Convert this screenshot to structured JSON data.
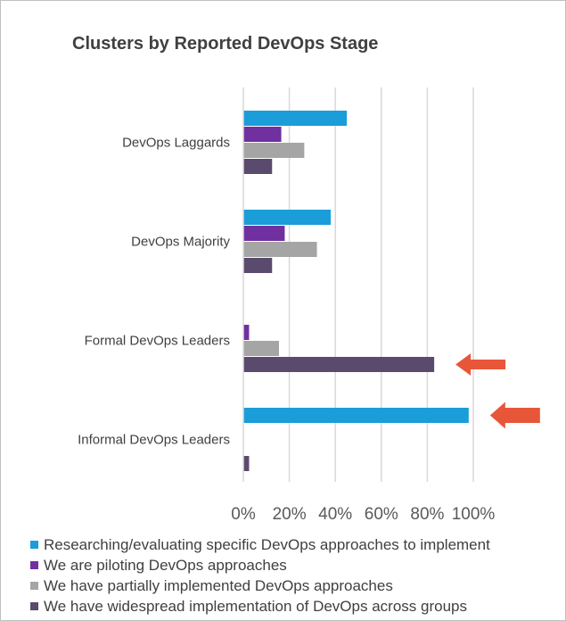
{
  "chart_data": {
    "type": "bar",
    "orientation": "horizontal",
    "title": "Clusters by Reported DevOps Stage",
    "categories": [
      "DevOps Laggards",
      "DevOps Majority",
      "Formal DevOps Leaders",
      "Informal DevOps Leaders"
    ],
    "series": [
      {
        "name": "Researching/evaluating specific DevOps approaches to implement",
        "color": "#1a9dd8",
        "values": [
          45,
          38,
          0,
          98
        ]
      },
      {
        "name": "We are piloting DevOps approaches",
        "color": "#7030a0",
        "values": [
          16.5,
          18,
          2.5,
          0
        ]
      },
      {
        "name": "We have partially implemented DevOps approaches",
        "color": "#a5a5a5",
        "values": [
          26.5,
          32,
          15.5,
          0
        ]
      },
      {
        "name": "We have widespread implementation of DevOps across groups",
        "color": "#5a4a6e",
        "values": [
          12.5,
          12.5,
          83,
          2.5
        ]
      }
    ],
    "xlim": [
      0,
      100
    ],
    "xticks": [
      0,
      20,
      40,
      60,
      80,
      100
    ],
    "xtick_labels": [
      "0%",
      "20%",
      "40%",
      "60%",
      "80%",
      "100%"
    ],
    "grid": true,
    "legend_position": "bottom",
    "annotations": [
      {
        "type": "arrow",
        "color": "#e8563a",
        "target": "Formal DevOps Leaders / We have widespread implementation of DevOps across groups"
      },
      {
        "type": "arrow",
        "color": "#e8563a",
        "target": "Informal DevOps Leaders / Researching/evaluating specific DevOps approaches to implement"
      }
    ]
  }
}
